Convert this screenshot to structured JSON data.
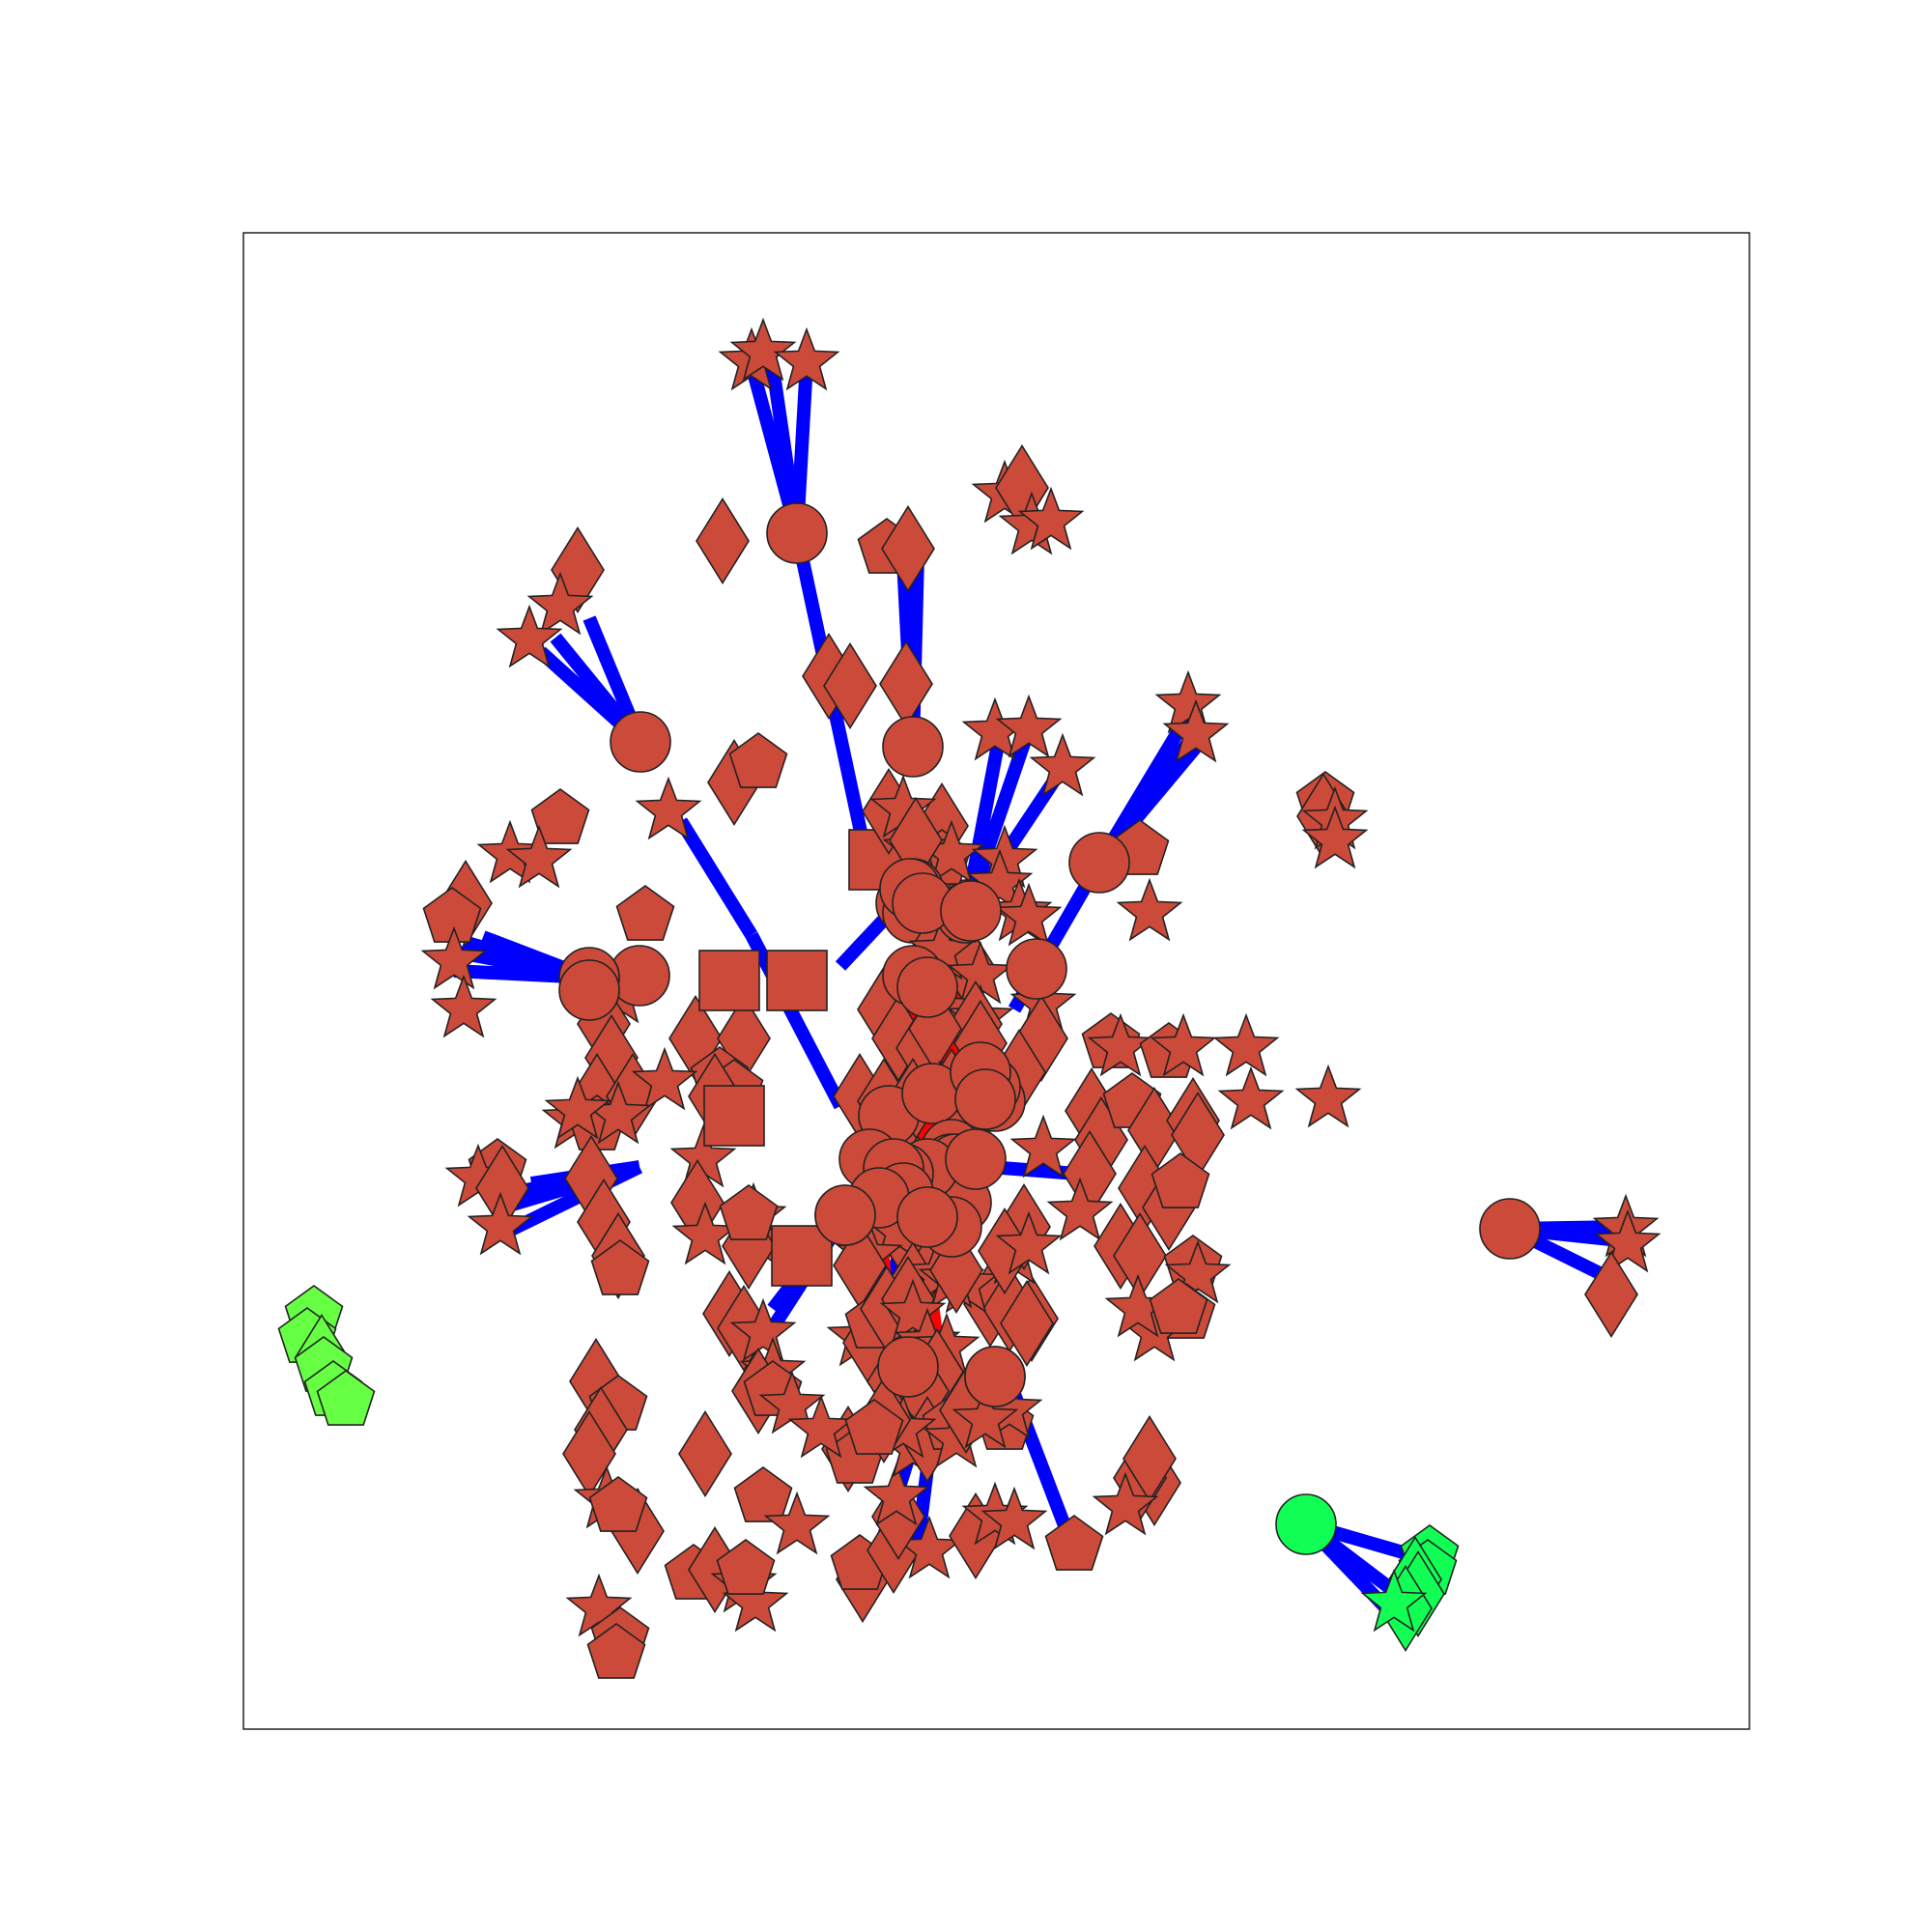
{
  "colors": {
    "background": "#ffffff",
    "frame": "#000000",
    "node_main": "#cc4a3a",
    "node_green_light": "#66ff44",
    "node_green_bright": "#11ff55",
    "node_outline": "#222222",
    "edge_blue": "#0000ff",
    "edge_red": "#ff0000"
  },
  "graph": {
    "node_shapes": [
      "circle",
      "square",
      "diamond",
      "pentagon",
      "star"
    ],
    "components": [
      {
        "id": "main-cluster",
        "color": "#cc4a3a"
      },
      {
        "id": "green-pentagon-cluster",
        "color": "#66ff44"
      },
      {
        "id": "green-hub-cluster",
        "color": "#11ff55"
      },
      {
        "id": "right-hub-cluster",
        "color": "#cc4a3a"
      }
    ]
  }
}
